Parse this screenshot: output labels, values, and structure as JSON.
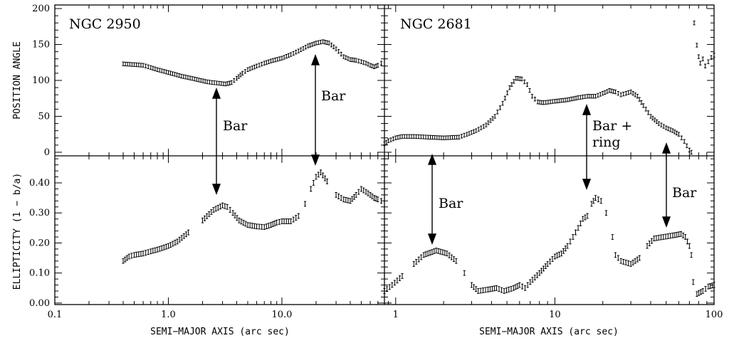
{
  "chart_data": [
    {
      "type": "scatter",
      "panel": "top-left",
      "title": "NGC 2950",
      "xlabel": "",
      "ylabel": "POSITION ANGLE",
      "xscale": "log",
      "xlim": [
        0.1,
        80
      ],
      "ylim": [
        -5,
        205
      ],
      "yticks": [
        "0",
        "50",
        "100",
        "150",
        "200"
      ],
      "annotations": [
        {
          "text": "Bar",
          "x": 3.1,
          "y": 75
        },
        {
          "text": "Bar",
          "x": 22,
          "y": 125
        }
      ],
      "series": [
        {
          "points": [
            [
              0.4,
              123
            ],
            [
              0.5,
              122
            ],
            [
              0.6,
              121
            ],
            [
              0.7,
              118
            ],
            [
              0.8,
              115
            ],
            [
              1.0,
              111
            ],
            [
              1.3,
              106
            ],
            [
              1.7,
              102
            ],
            [
              2.2,
              98
            ],
            [
              2.8,
              96
            ],
            [
              3.2,
              95
            ],
            [
              3.6,
              97
            ],
            [
              4.0,
              103
            ],
            [
              4.5,
              110
            ],
            [
              5.0,
              115
            ],
            [
              6.0,
              120
            ],
            [
              7.0,
              124
            ],
            [
              8.0,
              127
            ],
            [
              10.0,
              131
            ],
            [
              12.0,
              136
            ],
            [
              14.0,
              141
            ],
            [
              17.0,
              148
            ],
            [
              20.0,
              152
            ],
            [
              23.0,
              154
            ],
            [
              26.0,
              152
            ],
            [
              30.0,
              144
            ],
            [
              35.0,
              133
            ],
            [
              40.0,
              129
            ],
            [
              45.0,
              128
            ],
            [
              50.0,
              126
            ],
            [
              55.0,
              124
            ],
            [
              60.0,
              121
            ],
            [
              65.0,
              119
            ],
            [
              70.0,
              121
            ],
            [
              75.0,
              124
            ]
          ]
        }
      ]
    },
    {
      "type": "scatter",
      "panel": "bottom-left",
      "title": "",
      "xlabel": "SEMI−MAJOR AXIS (arc sec)",
      "ylabel": "ELLIPTICITY (1 − b/a)",
      "xscale": "log",
      "xlim": [
        0.1,
        80
      ],
      "ylim": [
        -0.005,
        0.49
      ],
      "xticks": [
        "0.1",
        "1.0",
        "10.0"
      ],
      "yticks": [
        "0.00",
        "0.10",
        "0.20",
        "0.30",
        "0.40"
      ],
      "series": [
        {
          "points": [
            [
              0.4,
              0.14
            ],
            [
              0.45,
              0.155
            ],
            [
              0.5,
              0.16
            ],
            [
              0.6,
              0.165
            ],
            [
              0.7,
              0.172
            ],
            [
              0.8,
              0.178
            ],
            [
              1.0,
              0.19
            ],
            [
              1.2,
              0.205
            ],
            [
              1.5,
              0.235
            ],
            [
              2.0,
              0.275
            ],
            [
              2.5,
              0.31
            ],
            [
              3.0,
              0.325
            ],
            [
              3.3,
              0.32
            ],
            [
              3.7,
              0.3
            ],
            [
              4.2,
              0.275
            ],
            [
              5.0,
              0.26
            ],
            [
              6.0,
              0.255
            ],
            [
              7.0,
              0.253
            ],
            [
              8.0,
              0.26
            ],
            [
              9.0,
              0.268
            ],
            [
              10.0,
              0.272
            ],
            [
              12.0,
              0.272
            ],
            [
              14.0,
              0.29
            ],
            [
              16.0,
              0.33
            ],
            [
              18.0,
              0.38
            ],
            [
              20.0,
              0.42
            ],
            [
              22.0,
              0.435
            ],
            [
              25.0,
              0.405
            ],
            [
              30.0,
              0.36
            ],
            [
              35.0,
              0.345
            ],
            [
              40.0,
              0.34
            ],
            [
              45.0,
              0.36
            ],
            [
              50.0,
              0.38
            ],
            [
              55.0,
              0.37
            ],
            [
              60.0,
              0.36
            ],
            [
              65.0,
              0.35
            ],
            [
              70.0,
              0.345
            ],
            [
              75.0,
              0.34
            ]
          ]
        }
      ]
    },
    {
      "type": "scatter",
      "panel": "top-right",
      "title": "NGC 2681",
      "xlabel": "",
      "ylabel": "",
      "xscale": "log",
      "xlim": [
        0.85,
        100
      ],
      "ylim": [
        -5,
        205
      ],
      "annotations": [
        {
          "text": "Bar +",
          "x": 18,
          "y": 30
        },
        {
          "text": "ring",
          "x": 18,
          "y": 12
        }
      ],
      "series": [
        {
          "points": [
            [
              0.85,
              12
            ],
            [
              0.9,
              16
            ],
            [
              1.0,
              20
            ],
            [
              1.1,
              22
            ],
            [
              1.3,
              22
            ],
            [
              1.6,
              21
            ],
            [
              2.0,
              20
            ],
            [
              2.5,
              21
            ],
            [
              2.8,
              25
            ],
            [
              3.2,
              30
            ],
            [
              3.7,
              38
            ],
            [
              4.2,
              50
            ],
            [
              4.7,
              68
            ],
            [
              5.2,
              90
            ],
            [
              5.7,
              103
            ],
            [
              6.2,
              102
            ],
            [
              6.7,
              94
            ],
            [
              7.2,
              78
            ],
            [
              7.8,
              70
            ],
            [
              8.5,
              69
            ],
            [
              10.0,
              71
            ],
            [
              12.0,
              73
            ],
            [
              14.0,
              76
            ],
            [
              16.0,
              78
            ],
            [
              18.0,
              78
            ],
            [
              20.0,
              82
            ],
            [
              22.0,
              86
            ],
            [
              24.0,
              84
            ],
            [
              26.0,
              80
            ],
            [
              28.0,
              82
            ],
            [
              30.0,
              84
            ],
            [
              33.0,
              78
            ],
            [
              36.0,
              65
            ],
            [
              40.0,
              50
            ],
            [
              45.0,
              40
            ],
            [
              50.0,
              34
            ],
            [
              55.0,
              30
            ],
            [
              60.0,
              25
            ],
            [
              65.0,
              15
            ],
            [
              70.0,
              3
            ],
            [
              72.0,
              0
            ],
            [
              75.0,
              180
            ],
            [
              78.0,
              149
            ],
            [
              80.0,
              133
            ],
            [
              82.0,
              124
            ],
            [
              85.0,
              130
            ],
            [
              88.0,
              120
            ],
            [
              92.0,
              126
            ],
            [
              96.0,
              132
            ],
            [
              100.0,
              135
            ]
          ]
        }
      ]
    },
    {
      "type": "scatter",
      "panel": "bottom-right",
      "title": "",
      "xlabel": "SEMI−MAJOR AXIS (arc sec)",
      "ylabel": "",
      "xscale": "log",
      "xlim": [
        0.85,
        100
      ],
      "ylim": [
        -0.005,
        0.49
      ],
      "xticks": [
        "1",
        "10",
        "100"
      ],
      "annotations": [
        {
          "text": "Bar",
          "x": 1.8,
          "y": 0.31
        },
        {
          "text": "Bar",
          "x": 52,
          "y": 0.36
        }
      ],
      "series": [
        {
          "points": [
            [
              0.85,
              0.04
            ],
            [
              0.95,
              0.06
            ],
            [
              1.1,
              0.09
            ],
            [
              1.3,
              0.13
            ],
            [
              1.5,
              0.16
            ],
            [
              1.8,
              0.175
            ],
            [
              2.1,
              0.165
            ],
            [
              2.4,
              0.14
            ],
            [
              2.7,
              0.1
            ],
            [
              3.0,
              0.06
            ],
            [
              3.3,
              0.04
            ],
            [
              3.8,
              0.045
            ],
            [
              4.3,
              0.05
            ],
            [
              4.8,
              0.04
            ],
            [
              5.5,
              0.05
            ],
            [
              6.0,
              0.06
            ],
            [
              6.5,
              0.05
            ],
            [
              7.0,
              0.07
            ],
            [
              8.0,
              0.1
            ],
            [
              9.0,
              0.13
            ],
            [
              10.0,
              0.155
            ],
            [
              11.0,
              0.165
            ],
            [
              12.0,
              0.19
            ],
            [
              13.0,
              0.22
            ],
            [
              14.0,
              0.25
            ],
            [
              15.0,
              0.28
            ],
            [
              16.0,
              0.29
            ],
            [
              17.0,
              0.33
            ],
            [
              18.0,
              0.35
            ],
            [
              19.5,
              0.34
            ],
            [
              21.0,
              0.3
            ],
            [
              23.0,
              0.22
            ],
            [
              24.0,
              0.16
            ],
            [
              26.0,
              0.14
            ],
            [
              30.0,
              0.13
            ],
            [
              34.0,
              0.15
            ],
            [
              38.0,
              0.19
            ],
            [
              42.0,
              0.215
            ],
            [
              48.0,
              0.22
            ],
            [
              55.0,
              0.225
            ],
            [
              62.0,
              0.23
            ],
            [
              66.0,
              0.22
            ],
            [
              70.0,
              0.19
            ],
            [
              72.0,
              0.16
            ],
            [
              74.0,
              0.07
            ],
            [
              78.0,
              0.03
            ],
            [
              85.0,
              0.04
            ],
            [
              92.0,
              0.055
            ],
            [
              100.0,
              0.06
            ]
          ]
        }
      ]
    }
  ]
}
